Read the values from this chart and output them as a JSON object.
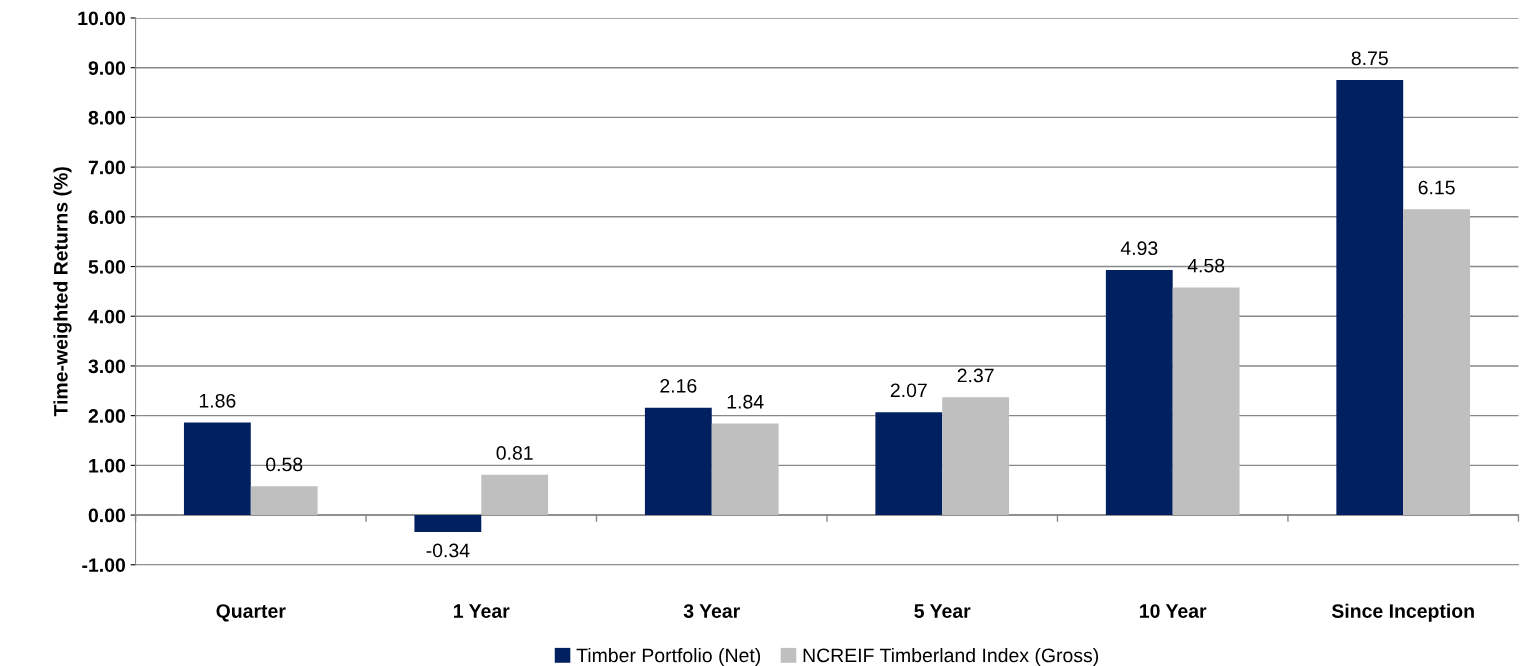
{
  "chart_data": {
    "type": "bar",
    "ylabel": "Time-weighted Returns (%)",
    "categories": [
      "Quarter",
      "1 Year",
      "3 Year",
      "5 Year",
      "10 Year",
      "Since Inception"
    ],
    "series": [
      {
        "name": "Timber Portfolio (Net)",
        "color": "#002060",
        "values": [
          1.86,
          -0.34,
          2.16,
          2.07,
          4.93,
          8.75
        ]
      },
      {
        "name": "NCREIF Timberland Index (Gross)",
        "color": "#bfbfbf",
        "values": [
          0.58,
          0.81,
          1.84,
          2.37,
          4.58,
          6.15
        ]
      }
    ],
    "ylim": [
      -1,
      10
    ],
    "yticks": [
      {
        "value": -1,
        "label": "-1.00"
      },
      {
        "value": 0,
        "label": "0.00"
      },
      {
        "value": 1,
        "label": "1.00"
      },
      {
        "value": 2,
        "label": "2.00"
      },
      {
        "value": 3,
        "label": "3.00"
      },
      {
        "value": 4,
        "label": "4.00"
      },
      {
        "value": 5,
        "label": "5.00"
      },
      {
        "value": 6,
        "label": "6.00"
      },
      {
        "value": 7,
        "label": "7.00"
      },
      {
        "value": 8,
        "label": "8.00"
      },
      {
        "value": 9,
        "label": "9.00"
      },
      {
        "value": 10,
        "label": "10.00"
      }
    ],
    "grid": "y",
    "legend": "bottom",
    "data_labels": true
  }
}
